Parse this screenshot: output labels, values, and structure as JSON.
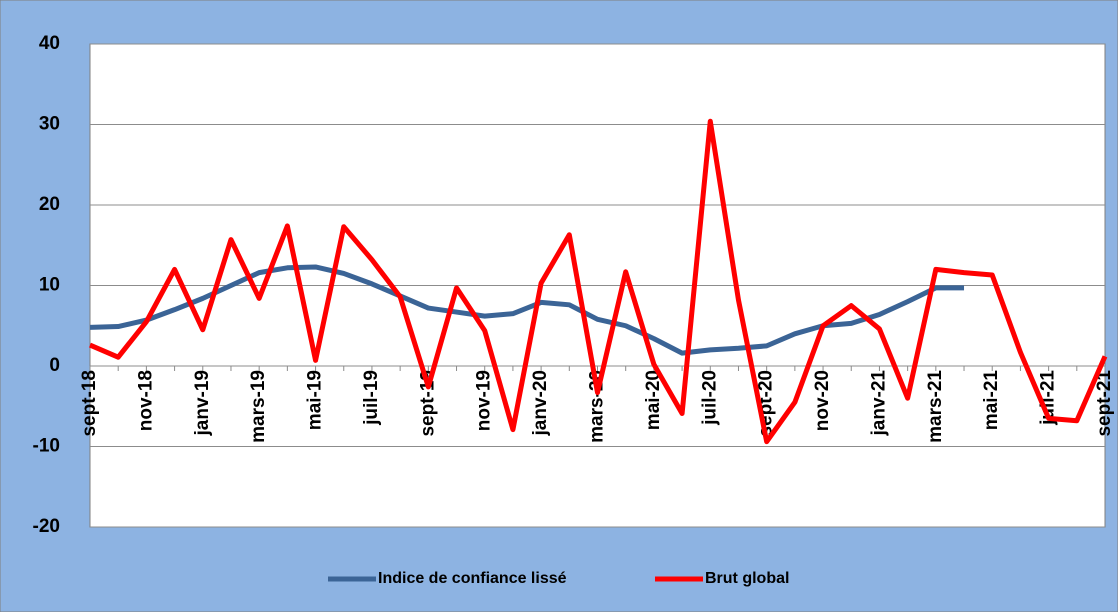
{
  "chart_data": {
    "type": "line",
    "categories": [
      "sept-18",
      null,
      "nov-18",
      null,
      "janv-19",
      null,
      "mars-19",
      null,
      "mai-19",
      null,
      "juil-19",
      null,
      "sept-19",
      null,
      "nov-19",
      null,
      "janv-20",
      null,
      "mars-20",
      null,
      "mai-20",
      null,
      "juil-20",
      null,
      "sept-20",
      null,
      "nov-20",
      null,
      "janv-21",
      null,
      "mars-21",
      null,
      "mai-21",
      null,
      "juil-21",
      null,
      "sept-21"
    ],
    "series": [
      {
        "name": "Indice de confiance lissé",
        "color": "#3b6496",
        "values": [
          4.8,
          4.9,
          5.7,
          7,
          8.4,
          10,
          11.6,
          12.2,
          12.3,
          11.5,
          10.2,
          8.7,
          7.2,
          6.7,
          6.2,
          6.5,
          7.9,
          7.6,
          5.8,
          5,
          3.4,
          1.6,
          2,
          2.2,
          2.5,
          4,
          5,
          5.3,
          6.4,
          8,
          9.7,
          9.7,
          null,
          null,
          null,
          null,
          null
        ]
      },
      {
        "name": "Brut global",
        "color": "#ff0000",
        "values": [
          2.6,
          1.1,
          5.5,
          12,
          4.5,
          15.7,
          8.4,
          17.4,
          0.7,
          17.3,
          13.2,
          8.6,
          -2.6,
          9.7,
          4.4,
          -7.9,
          10.3,
          16.3,
          -3.3,
          11.7,
          0.2,
          -5.9,
          30.4,
          8.2,
          -9.4,
          -4.5,
          5,
          7.5,
          4.6,
          -4,
          12,
          11.6,
          11.3,
          1.7,
          -6.5,
          -6.8,
          1.2
        ]
      }
    ],
    "ylim": [
      -20,
      40
    ],
    "yticks": [
      -20,
      -10,
      0,
      10,
      20,
      30,
      40
    ],
    "grid": true,
    "legend": "bottom"
  }
}
